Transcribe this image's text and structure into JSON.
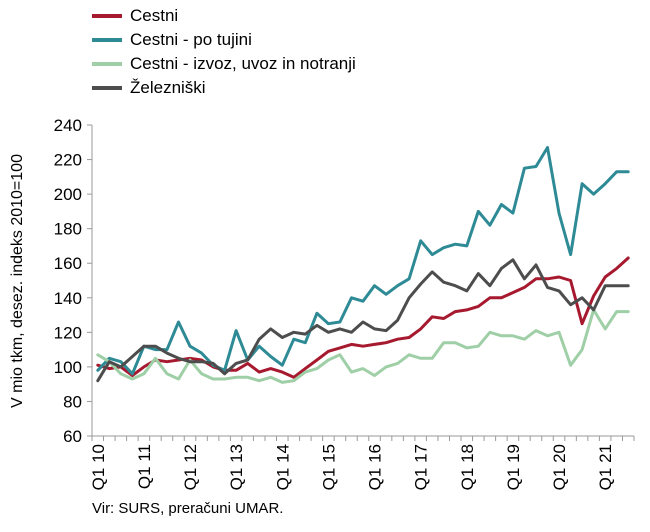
{
  "chart_data": {
    "type": "line",
    "ylabel": "V mio tkm, desez. indeks 2010=100",
    "ylim": [
      60,
      240
    ],
    "yticks": [
      60,
      80,
      100,
      120,
      140,
      160,
      180,
      200,
      220,
      240
    ],
    "xticklabels": [
      "Q1 10",
      "Q1 11",
      "Q1 12",
      "Q1 13",
      "Q1 14",
      "Q1 15",
      "Q1 16",
      "Q1 17",
      "Q1 18",
      "Q1 19",
      "Q1 20",
      "Q1 21"
    ],
    "x": [
      "Q1 10",
      "Q2 10",
      "Q3 10",
      "Q4 10",
      "Q1 11",
      "Q2 11",
      "Q3 11",
      "Q4 11",
      "Q1 12",
      "Q2 12",
      "Q3 12",
      "Q4 12",
      "Q1 13",
      "Q2 13",
      "Q3 13",
      "Q4 13",
      "Q1 14",
      "Q2 14",
      "Q3 14",
      "Q4 14",
      "Q1 15",
      "Q2 15",
      "Q3 15",
      "Q4 15",
      "Q1 16",
      "Q2 16",
      "Q3 16",
      "Q4 16",
      "Q1 17",
      "Q2 17",
      "Q3 17",
      "Q4 17",
      "Q1 18",
      "Q2 18",
      "Q3 18",
      "Q4 18",
      "Q1 19",
      "Q2 19",
      "Q3 19",
      "Q4 19",
      "Q1 20",
      "Q2 20",
      "Q3 20",
      "Q4 20",
      "Q1 21",
      "Q2 21",
      "Q3 21"
    ],
    "grid": false,
    "legend_position": "top-left",
    "series": [
      {
        "name": "Cestni",
        "color": "#A6192E",
        "values": [
          101,
          99,
          100,
          95,
          100,
          104,
          103,
          104,
          105,
          104,
          100,
          98,
          98,
          102,
          97,
          99,
          97,
          94,
          99,
          104,
          109,
          111,
          113,
          112,
          113,
          114,
          116,
          117,
          122,
          129,
          128,
          132,
          133,
          135,
          140,
          140,
          143,
          146,
          151,
          151,
          152,
          150,
          125,
          141,
          152,
          157,
          163
        ]
      },
      {
        "name": "Cestni - po tujini",
        "color": "#2E8B96",
        "values": [
          98,
          105,
          103,
          96,
          112,
          110,
          110,
          126,
          112,
          108,
          101,
          98,
          121,
          104,
          112,
          106,
          101,
          116,
          114,
          131,
          125,
          126,
          140,
          138,
          147,
          142,
          147,
          151,
          173,
          165,
          169,
          171,
          170,
          190,
          182,
          194,
          189,
          215,
          216,
          227,
          189,
          165,
          206,
          200,
          206,
          213,
          213
        ]
      },
      {
        "name": "Cestni - izvoz, uvoz in notranji",
        "color": "#9FCFA6",
        "values": [
          107,
          103,
          96,
          93,
          96,
          105,
          96,
          93,
          104,
          96,
          93,
          93,
          94,
          94,
          92,
          94,
          91,
          92,
          97,
          99,
          104,
          107,
          97,
          99,
          95,
          100,
          102,
          107,
          105,
          105,
          114,
          114,
          111,
          112,
          120,
          118,
          118,
          116,
          121,
          118,
          120,
          101,
          110,
          133,
          122,
          132,
          132
        ]
      },
      {
        "name": "Železniški",
        "color": "#4D4D4D",
        "values": [
          92,
          103,
          100,
          106,
          112,
          112,
          108,
          105,
          103,
          103,
          102,
          96,
          102,
          104,
          116,
          122,
          117,
          120,
          119,
          124,
          120,
          122,
          120,
          126,
          122,
          121,
          127,
          140,
          148,
          155,
          149,
          147,
          144,
          154,
          147,
          157,
          162,
          151,
          159,
          146,
          144,
          136,
          140,
          133,
          147,
          147,
          147
        ]
      }
    ]
  },
  "source": "Vir: SURS, preračuni UMAR."
}
